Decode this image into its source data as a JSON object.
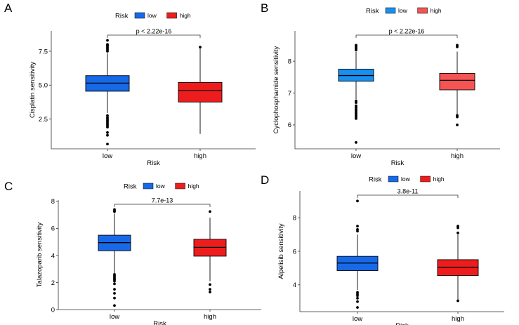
{
  "legend": {
    "title": "Risk",
    "items": [
      {
        "label": "low",
        "color": "#1769e8"
      },
      {
        "label": "high",
        "color": "#ee1d1d"
      }
    ]
  },
  "colors": {
    "low_panel_b": "#1890f0",
    "high_panel_b": "#f45454",
    "outline": "#000000",
    "axis": "#444444"
  },
  "chart_data": [
    {
      "type": "box",
      "panel": "A",
      "title": "",
      "xlabel": "Risk",
      "ylabel": "Cisplatin sensitivity",
      "categories": [
        "low",
        "high"
      ],
      "yticks": [
        2.5,
        5.0,
        7.5
      ],
      "ytick_labels": [
        "2.5",
        "5.0",
        "7.5"
      ],
      "ylim": [
        0.3,
        9.0
      ],
      "pvalue": "p < 2.22e-16",
      "boxes": [
        {
          "group": "low",
          "q1": 4.55,
          "median": 5.15,
          "q3": 5.7,
          "whisker_low": 2.95,
          "whisker_high": 7.35,
          "outliers": [
            8.3,
            8.0,
            7.95,
            7.9,
            7.8,
            7.7,
            7.6,
            7.5,
            2.75,
            2.6,
            2.5,
            2.4,
            2.3,
            2.2,
            2.1,
            2.0,
            1.9,
            1.5,
            1.3,
            0.65
          ]
        },
        {
          "group": "high",
          "q1": 3.75,
          "median": 4.6,
          "q3": 5.2,
          "whisker_low": 1.4,
          "whisker_high": 7.7,
          "outliers": [
            7.8
          ]
        }
      ]
    },
    {
      "type": "box",
      "panel": "B",
      "title": "",
      "xlabel": "Risk",
      "ylabel": "Cyclophosphamide sensitivity",
      "categories": [
        "low",
        "high"
      ],
      "yticks": [
        6,
        7,
        8
      ],
      "ytick_labels": [
        "6",
        "7",
        "8"
      ],
      "ylim": [
        5.25,
        8.95
      ],
      "pvalue": "p < 2.22e-16",
      "boxes": [
        {
          "group": "low",
          "q1": 7.37,
          "median": 7.55,
          "q3": 7.75,
          "whisker_low": 6.8,
          "whisker_high": 8.3,
          "outliers": [
            8.5,
            8.45,
            8.4,
            8.35,
            6.75,
            6.7,
            6.6,
            6.55,
            6.5,
            6.45,
            6.4,
            6.35,
            6.3,
            6.25,
            6.2,
            5.45
          ]
        },
        {
          "group": "high",
          "q1": 7.1,
          "median": 7.4,
          "q3": 7.62,
          "whisker_low": 6.35,
          "whisker_high": 8.3,
          "outliers": [
            8.5,
            8.45,
            6.3,
            6.25,
            6.0
          ]
        }
      ]
    },
    {
      "type": "box",
      "panel": "C",
      "title": "",
      "xlabel": "Risk",
      "ylabel": "Talazoparib sensitivity",
      "categories": [
        "low",
        "high"
      ],
      "yticks": [
        0,
        2,
        4,
        6,
        8
      ],
      "ytick_labels": [
        "0",
        "2",
        "4",
        "6",
        "8"
      ],
      "ylim": [
        0,
        8.1
      ],
      "pvalue": "7.7e-13",
      "boxes": [
        {
          "group": "low",
          "q1": 4.35,
          "median": 4.95,
          "q3": 5.5,
          "whisker_low": 2.7,
          "whisker_high": 7.1,
          "outliers": [
            7.4,
            7.3,
            7.25,
            2.6,
            2.5,
            2.4,
            2.3,
            2.2,
            2.1,
            1.9,
            1.5,
            1.2,
            0.85,
            0.3
          ]
        },
        {
          "group": "high",
          "q1": 3.95,
          "median": 4.6,
          "q3": 5.2,
          "whisker_low": 2.1,
          "whisker_high": 6.8,
          "outliers": [
            7.25,
            1.85,
            1.5,
            1.3
          ]
        }
      ]
    },
    {
      "type": "box",
      "panel": "D",
      "title": "",
      "xlabel": "Risk",
      "ylabel": "Alpelisib sensitivity",
      "categories": [
        "low",
        "high"
      ],
      "yticks": [
        4,
        6,
        8
      ],
      "ytick_labels": [
        "4",
        "6",
        "8"
      ],
      "ylim": [
        2.4,
        9.6
      ],
      "pvalue": "3.8e-11",
      "boxes": [
        {
          "group": "low",
          "q1": 4.85,
          "median": 5.3,
          "q3": 5.7,
          "whisker_low": 3.7,
          "whisker_high": 7.0,
          "outliers": [
            9.0,
            7.5,
            7.3,
            7.2,
            3.55,
            3.45,
            3.35,
            3.2,
            3.0,
            2.65
          ]
        },
        {
          "group": "high",
          "q1": 4.55,
          "median": 5.05,
          "q3": 5.5,
          "whisker_low": 3.1,
          "whisker_high": 7.0,
          "outliers": [
            7.5,
            7.4,
            7.1,
            3.05
          ]
        }
      ]
    }
  ]
}
